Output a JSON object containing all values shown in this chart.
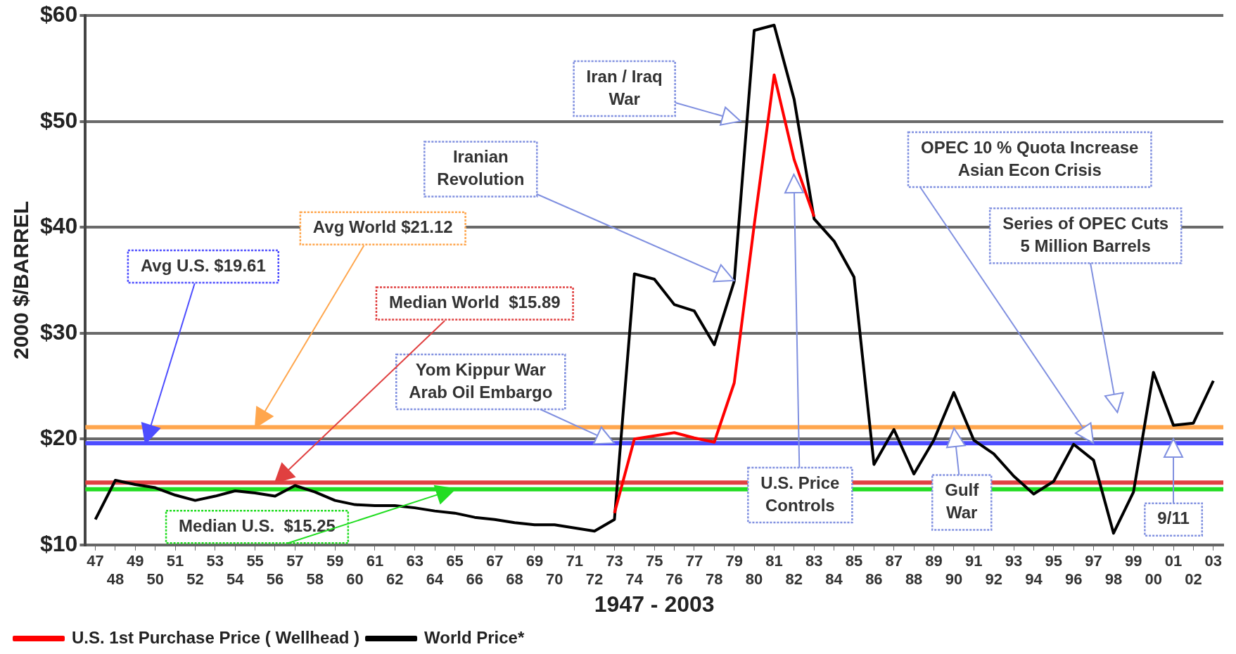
{
  "chart_data": {
    "type": "line",
    "xlabel": "1947 - 2003",
    "ylabel": "2000 $/BARREL",
    "categories": [
      "47",
      "48",
      "49",
      "50",
      "51",
      "52",
      "53",
      "54",
      "55",
      "56",
      "57",
      "58",
      "59",
      "60",
      "61",
      "62",
      "63",
      "64",
      "65",
      "66",
      "67",
      "68",
      "69",
      "70",
      "71",
      "72",
      "73",
      "74",
      "75",
      "76",
      "77",
      "78",
      "79",
      "80",
      "81",
      "82",
      "83",
      "84",
      "85",
      "86",
      "87",
      "88",
      "89",
      "90",
      "91",
      "92",
      "93",
      "94",
      "95",
      "96",
      "97",
      "98",
      "99",
      "00",
      "01",
      "02",
      "03"
    ],
    "series": [
      {
        "name": "U.S. 1st Purchase Price ( Wellhead )",
        "color": "#ff0000",
        "values": [
          null,
          null,
          null,
          null,
          null,
          null,
          null,
          null,
          null,
          null,
          null,
          null,
          null,
          null,
          null,
          null,
          null,
          null,
          null,
          null,
          null,
          null,
          null,
          null,
          null,
          null,
          13.0,
          20.0,
          20.3,
          20.6,
          20.1,
          19.7,
          25.3,
          40.2,
          54.4,
          46.4,
          41.0,
          null,
          null,
          null,
          null,
          null,
          null,
          null,
          null,
          null,
          null,
          null,
          null,
          null,
          null,
          null,
          null,
          null,
          null,
          null,
          null
        ]
      },
      {
        "name": "World Price*",
        "color": "#000000",
        "values": [
          12.4,
          16.1,
          15.7,
          15.4,
          14.7,
          14.2,
          14.6,
          15.1,
          14.9,
          14.6,
          15.6,
          15.0,
          14.2,
          13.8,
          13.7,
          13.7,
          13.5,
          13.2,
          13.0,
          12.6,
          12.4,
          12.1,
          11.9,
          11.9,
          11.6,
          11.3,
          12.4,
          35.6,
          35.1,
          32.7,
          32.1,
          28.9,
          34.9,
          58.6,
          59.1,
          52.1,
          40.8,
          38.7,
          35.3,
          17.6,
          20.9,
          16.7,
          19.9,
          24.4,
          19.9,
          18.6,
          16.5,
          14.8,
          16.0,
          19.5,
          18.0,
          11.1,
          15.0,
          26.3,
          21.3,
          21.5,
          25.5
        ]
      }
    ],
    "ylim": [
      10,
      60
    ],
    "yticks": [
      {
        "value": 10,
        "label": "$10"
      },
      {
        "value": 20,
        "label": "$20"
      },
      {
        "value": 30,
        "label": "$30"
      },
      {
        "value": 40,
        "label": "$40"
      },
      {
        "value": 50,
        "label": "$50"
      },
      {
        "value": 60,
        "label": "$60"
      }
    ],
    "ref_lines": [
      {
        "axis": "y",
        "value": 21.12,
        "label": "Avg World $21.12",
        "color": "#ffa64d"
      },
      {
        "axis": "y",
        "value": 19.61,
        "label": "Avg U.S. $19.61",
        "color": "#4d4dff"
      },
      {
        "axis": "y",
        "value": 15.89,
        "label": "Median World  $15.89",
        "color": "#e04040"
      },
      {
        "axis": "y",
        "value": 15.25,
        "label": "Median U.S.  $15.25",
        "color": "#22dd22"
      }
    ],
    "annotations": [
      "Iran / Iraq\nWar",
      {
        "text": "Iranian\nRevolution",
        "x": "79",
        "y": 35
      },
      {
        "text": "OPEC 10 % Quota Increase\nAsian Econ Crisis",
        "x": "97",
        "y": 19.61
      },
      "Series of OPEC Cuts\n5 Million Barrels",
      {
        "text": "Yom Kippur War\nArab Oil Embargo",
        "x": "73",
        "y": 19.61
      },
      {
        "text": "U.S. Price\nControls",
        "x": "82",
        "y": 45
      },
      {
        "text": "Gulf\nWar",
        "x": "90",
        "y": 21
      },
      {
        "text": "9/11",
        "x": "01",
        "y": 20
      }
    ],
    "grid": "y",
    "legend": "bottom",
    "marker": "none",
    "line_style": "solid"
  }
}
